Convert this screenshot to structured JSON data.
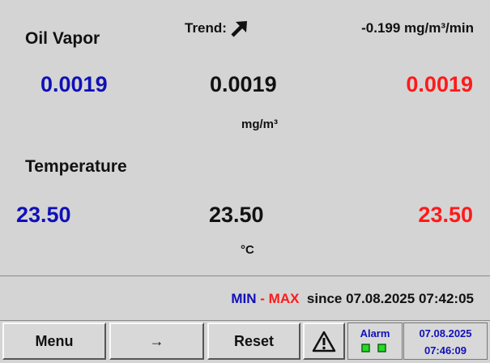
{
  "oil_vapor": {
    "label": "Oil Vapor",
    "trend_label": "Trend:",
    "trend": "-0.199 mg/m³/min",
    "min": "0.0019",
    "current": "0.0019",
    "max": "0.0019",
    "unit": "mg/m³"
  },
  "temperature": {
    "label": "Temperature",
    "min": "23.50",
    "current": "23.50",
    "max": "23.50",
    "unit": "°C"
  },
  "status": {
    "min": "MIN",
    "dash": "-",
    "max": "MAX",
    "since": "since",
    "date": "07.08.2025",
    "time": "07:42:05"
  },
  "buttons": [
    "Menu",
    "→",
    "Reset"
  ],
  "alarm": {
    "label": "Alarm"
  },
  "clock": {
    "date": "07.08.2025",
    "time": "07:46:09"
  }
}
